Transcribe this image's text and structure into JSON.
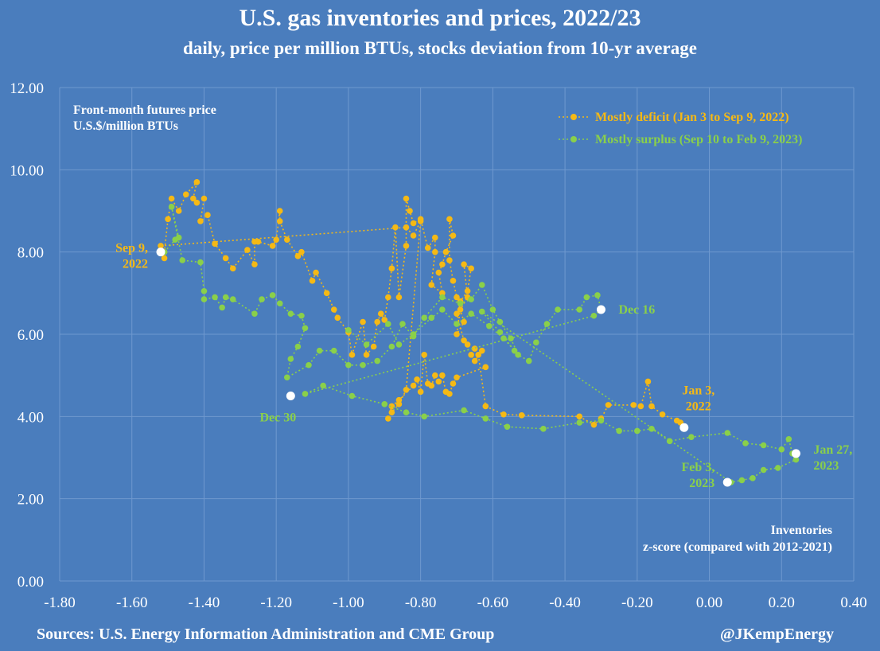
{
  "header": {
    "title": "U.S. gas inventories and prices, 2022/23",
    "subtitle": "daily, price per million BTUs, stocks deviation from 10-yr average"
  },
  "footer": {
    "sources": "Sources: U.S. Energy Information Administration and CME Group",
    "handle": "@JKempEnergy"
  },
  "colors": {
    "background": "#4a7dbd",
    "deficit": "#f5b915",
    "surplus": "#8ad04a",
    "marker": "#ffffff",
    "text": "#ffffff",
    "grid": "#6f99cf"
  },
  "chart_data": {
    "type": "scatter",
    "title": "U.S. gas inventories and prices, 2022/23",
    "subtitle": "daily, price per million BTUs, stocks deviation from 10-yr average",
    "ylabel_lines": [
      "Front-month futures price",
      "U.S.$/million BTUs"
    ],
    "xlabel_lines": [
      "Inventories",
      "z-score (compared with 2012-2021)"
    ],
    "xlim": [
      -1.8,
      0.4
    ],
    "ylim": [
      0,
      12
    ],
    "xticks": [
      -1.8,
      -1.6,
      -1.4,
      -1.2,
      -1.0,
      -0.8,
      -0.6,
      -0.4,
      -0.2,
      0.0,
      0.2,
      0.4
    ],
    "xtick_labels": [
      "-1.80",
      "-1.60",
      "-1.40",
      "-1.20",
      "-1.00",
      "-0.80",
      "-0.60",
      "-0.40",
      "-0.20",
      "0.00",
      "0.20",
      "0.40"
    ],
    "yticks": [
      0,
      2,
      4,
      6,
      8,
      10,
      12
    ],
    "ytick_labels": [
      "0.00",
      "2.00",
      "4.00",
      "6.00",
      "8.00",
      "10.00",
      "12.00"
    ],
    "grid": true,
    "legend_position": "top-right",
    "series": [
      {
        "name": "Mostly deficit (Jan 3 to Sep 9, 2022)",
        "color": "#f5b915",
        "points": [
          [
            -0.07,
            3.72
          ],
          [
            -0.08,
            3.85
          ],
          [
            -0.09,
            3.9
          ],
          [
            -0.13,
            4.05
          ],
          [
            -0.16,
            4.25
          ],
          [
            -0.17,
            4.85
          ],
          [
            -0.19,
            4.25
          ],
          [
            -0.21,
            4.28
          ],
          [
            -0.28,
            4.28
          ],
          [
            -0.3,
            3.95
          ],
          [
            -0.32,
            3.8
          ],
          [
            -0.36,
            4.0
          ],
          [
            -0.52,
            4.03
          ],
          [
            -0.57,
            4.05
          ],
          [
            -0.62,
            4.25
          ],
          [
            -0.64,
            5.5
          ],
          [
            -0.63,
            5.6
          ],
          [
            -0.65,
            5.35
          ],
          [
            -0.66,
            5.5
          ],
          [
            -0.65,
            5.65
          ],
          [
            -0.67,
            5.75
          ],
          [
            -0.68,
            5.85
          ],
          [
            -0.7,
            6.5
          ],
          [
            -0.69,
            6.8
          ],
          [
            -0.67,
            7.05
          ],
          [
            -0.66,
            7.6
          ],
          [
            -0.68,
            7.7
          ],
          [
            -0.67,
            6.9
          ],
          [
            -0.69,
            6.6
          ],
          [
            -0.7,
            6.0
          ],
          [
            -0.68,
            6.3
          ],
          [
            -0.7,
            6.9
          ],
          [
            -0.71,
            7.3
          ],
          [
            -0.72,
            7.8
          ],
          [
            -0.72,
            8.8
          ],
          [
            -0.71,
            8.4
          ],
          [
            -0.73,
            8.0
          ],
          [
            -0.74,
            7.7
          ],
          [
            -0.75,
            7.5
          ],
          [
            -0.74,
            7.0
          ],
          [
            -0.77,
            7.2
          ],
          [
            -0.76,
            8.0
          ],
          [
            -0.76,
            8.35
          ],
          [
            -0.78,
            8.1
          ],
          [
            -0.8,
            8.8
          ],
          [
            -0.82,
            8.7
          ],
          [
            -0.83,
            9.0
          ],
          [
            -0.84,
            9.3
          ],
          [
            -0.84,
            8.15
          ],
          [
            -0.86,
            6.9
          ],
          [
            -0.87,
            8.6
          ],
          [
            -0.88,
            7.6
          ],
          [
            -0.89,
            6.9
          ],
          [
            -0.9,
            6.35
          ],
          [
            -0.91,
            6.5
          ],
          [
            -0.92,
            6.3
          ],
          [
            -0.93,
            5.7
          ],
          [
            -0.95,
            5.5
          ],
          [
            -0.96,
            6.3
          ],
          [
            -0.99,
            5.5
          ],
          [
            -1.0,
            6.05
          ],
          [
            -1.03,
            6.4
          ],
          [
            -1.04,
            6.6
          ],
          [
            -1.06,
            7.0
          ],
          [
            -1.09,
            7.5
          ],
          [
            -1.1,
            7.3
          ],
          [
            -1.13,
            8.0
          ],
          [
            -1.14,
            7.9
          ],
          [
            -1.17,
            8.3
          ],
          [
            -1.19,
            8.75
          ],
          [
            -1.19,
            9.0
          ],
          [
            -1.2,
            8.3
          ],
          [
            -1.21,
            8.15
          ],
          [
            -1.25,
            8.25
          ],
          [
            -1.26,
            8.25
          ],
          [
            -1.26,
            7.7
          ],
          [
            -1.28,
            8.05
          ],
          [
            -1.32,
            7.6
          ],
          [
            -1.34,
            7.85
          ],
          [
            -1.37,
            8.2
          ],
          [
            -1.39,
            8.9
          ],
          [
            -1.41,
            8.75
          ],
          [
            -1.4,
            9.3
          ],
          [
            -1.42,
            9.2
          ],
          [
            -1.43,
            9.3
          ],
          [
            -1.42,
            9.7
          ],
          [
            -1.45,
            9.4
          ],
          [
            -1.47,
            9.0
          ],
          [
            -1.49,
            9.3
          ],
          [
            -1.5,
            8.8
          ],
          [
            -1.51,
            8.0
          ],
          [
            -1.51,
            7.85
          ],
          [
            -1.52,
            8.15
          ],
          [
            -0.84,
            8.6
          ],
          [
            -0.82,
            8.4
          ],
          [
            -0.8,
            8.75
          ],
          [
            -0.84,
            4.65
          ],
          [
            -0.86,
            4.3
          ],
          [
            -0.88,
            4.1
          ],
          [
            -0.89,
            3.95
          ],
          [
            -0.88,
            4.25
          ],
          [
            -0.86,
            4.4
          ],
          [
            -0.82,
            4.75
          ],
          [
            -0.81,
            4.9
          ],
          [
            -0.8,
            4.6
          ],
          [
            -0.79,
            5.5
          ],
          [
            -0.78,
            4.8
          ],
          [
            -0.77,
            4.75
          ],
          [
            -0.76,
            5.0
          ],
          [
            -0.75,
            4.85
          ],
          [
            -0.74,
            5.0
          ],
          [
            -0.73,
            4.6
          ],
          [
            -0.72,
            4.55
          ],
          [
            -0.71,
            4.8
          ],
          [
            -0.7,
            4.95
          ],
          [
            -0.62,
            5.2
          ]
        ]
      },
      {
        "name": "Mostly surplus (Sep 10 to Feb 9, 2023)",
        "color": "#8ad04a",
        "points": [
          [
            -1.51,
            8.0
          ],
          [
            -1.48,
            8.3
          ],
          [
            -1.47,
            8.35
          ],
          [
            -1.49,
            9.1
          ],
          [
            -1.46,
            7.8
          ],
          [
            -1.41,
            7.75
          ],
          [
            -1.4,
            7.05
          ],
          [
            -1.4,
            6.85
          ],
          [
            -1.37,
            6.9
          ],
          [
            -1.35,
            6.65
          ],
          [
            -1.34,
            6.9
          ],
          [
            -1.32,
            6.85
          ],
          [
            -1.26,
            6.5
          ],
          [
            -1.24,
            6.85
          ],
          [
            -1.21,
            6.95
          ],
          [
            -1.19,
            6.75
          ],
          [
            -1.16,
            6.5
          ],
          [
            -1.13,
            6.45
          ],
          [
            -1.12,
            6.15
          ],
          [
            -1.14,
            5.7
          ],
          [
            -1.16,
            5.4
          ],
          [
            -1.17,
            4.95
          ],
          [
            -1.11,
            5.25
          ],
          [
            -1.08,
            5.6
          ],
          [
            -1.04,
            5.6
          ],
          [
            -1.0,
            5.25
          ],
          [
            -0.96,
            5.25
          ],
          [
            -0.92,
            5.35
          ],
          [
            -0.88,
            5.7
          ],
          [
            -0.85,
            6.25
          ],
          [
            -0.82,
            5.95
          ],
          [
            -0.79,
            6.4
          ],
          [
            -0.74,
            6.9
          ],
          [
            -0.69,
            6.75
          ],
          [
            -0.66,
            6.85
          ],
          [
            -0.63,
            7.2
          ],
          [
            -0.6,
            6.6
          ],
          [
            -0.58,
            6.3
          ],
          [
            -0.55,
            5.9
          ],
          [
            -0.53,
            5.5
          ],
          [
            -0.5,
            5.35
          ],
          [
            -0.48,
            5.8
          ],
          [
            -0.45,
            6.25
          ],
          [
            -0.42,
            6.6
          ],
          [
            -0.36,
            6.6
          ],
          [
            -0.34,
            6.9
          ],
          [
            -0.31,
            6.95
          ],
          [
            -0.3,
            6.6
          ],
          [
            -0.32,
            6.45
          ],
          [
            -1.12,
            4.55
          ],
          [
            -1.07,
            4.75
          ],
          [
            -0.99,
            4.5
          ],
          [
            -0.9,
            4.3
          ],
          [
            -0.84,
            4.1
          ],
          [
            -0.79,
            4.0
          ],
          [
            -0.68,
            4.15
          ],
          [
            -0.62,
            3.95
          ],
          [
            -0.56,
            3.75
          ],
          [
            -0.46,
            3.7
          ],
          [
            -0.36,
            3.85
          ],
          [
            -0.3,
            3.9
          ],
          [
            -0.25,
            3.65
          ],
          [
            -0.2,
            3.65
          ],
          [
            -0.16,
            3.7
          ],
          [
            -0.11,
            3.4
          ],
          [
            -0.05,
            3.5
          ],
          [
            0.05,
            3.6
          ],
          [
            0.1,
            3.35
          ],
          [
            0.15,
            3.3
          ],
          [
            0.2,
            3.2
          ],
          [
            0.22,
            3.45
          ],
          [
            0.23,
            3.1
          ],
          [
            0.24,
            2.95
          ],
          [
            0.19,
            2.75
          ],
          [
            0.15,
            2.7
          ],
          [
            0.12,
            2.5
          ],
          [
            0.09,
            2.45
          ],
          [
            0.06,
            2.4
          ],
          [
            -0.63,
            6.55
          ],
          [
            -0.58,
            6.05
          ],
          [
            -0.54,
            5.6
          ],
          [
            -0.57,
            5.9
          ],
          [
            -0.61,
            6.2
          ],
          [
            -0.66,
            6.5
          ],
          [
            -0.7,
            6.25
          ],
          [
            -0.74,
            6.6
          ],
          [
            -0.77,
            6.4
          ],
          [
            -0.82,
            6.0
          ],
          [
            -0.86,
            5.75
          ],
          [
            -0.89,
            6.25
          ],
          [
            -0.95,
            5.75
          ],
          [
            -1.0,
            6.1
          ]
        ]
      }
    ],
    "highlight_points": [
      {
        "x": -1.52,
        "y": 8.0,
        "label_lines": [
          "Sep 9,",
          "2022"
        ],
        "color": "#f5b915",
        "anchor": "end",
        "dx": -16,
        "dy": 0
      },
      {
        "x": -1.16,
        "y": 4.5,
        "label_lines": [
          "Dec 30"
        ],
        "color": "#8ad04a",
        "anchor": "middle",
        "dx": -16,
        "dy": 32
      },
      {
        "x": -0.3,
        "y": 6.6,
        "label_lines": [
          "Dec 16"
        ],
        "color": "#8ad04a",
        "anchor": "start",
        "dx": 22,
        "dy": 5
      },
      {
        "x": -0.07,
        "y": 3.73,
        "label_lines": [
          "Jan 3,",
          "2022"
        ],
        "color": "#f5b915",
        "anchor": "middle",
        "dx": 18,
        "dy": -42
      },
      {
        "x": 0.24,
        "y": 3.1,
        "label_lines": [
          "Jan 27,",
          "2023"
        ],
        "color": "#8ad04a",
        "anchor": "start",
        "dx": 22,
        "dy": 0
      },
      {
        "x": 0.05,
        "y": 2.4,
        "label_lines": [
          "Feb 3,",
          "2023"
        ],
        "color": "#8ad04a",
        "anchor": "end",
        "dx": -16,
        "dy": -14
      }
    ]
  }
}
